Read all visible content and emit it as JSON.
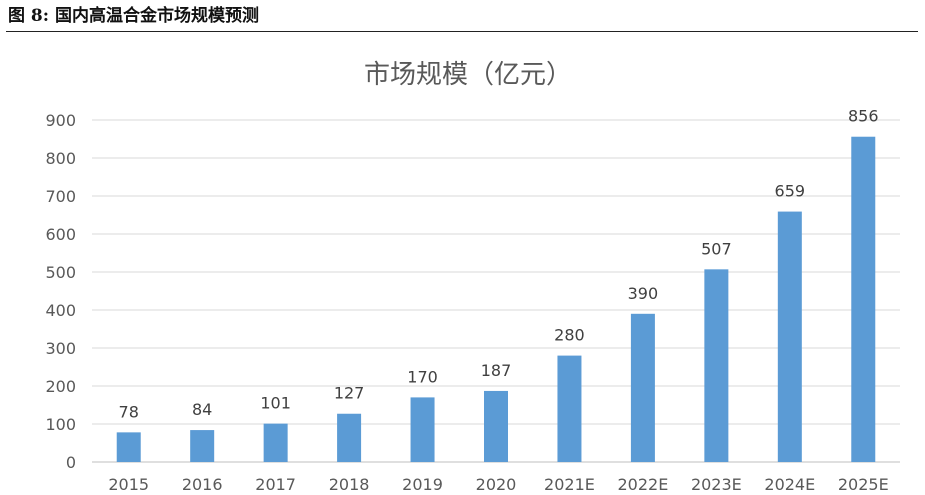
{
  "caption": {
    "figure_label": "图 8:",
    "title": "国内高温合金市场规模预测"
  },
  "chart_data": {
    "type": "bar",
    "title": "市场规模（亿元）",
    "categories": [
      "2015",
      "2016",
      "2017",
      "2018",
      "2019",
      "2020",
      "2021E",
      "2022E",
      "2023E",
      "2024E",
      "2025E"
    ],
    "values": [
      78,
      84,
      101,
      127,
      170,
      187,
      280,
      390,
      507,
      659,
      856
    ],
    "data_labels": [
      "78",
      "84",
      "101",
      "127",
      "170",
      "187",
      "280",
      "390",
      "507",
      "659",
      "856"
    ],
    "xlabel": "",
    "ylabel": "",
    "ylim": [
      0,
      900
    ],
    "yticks": [
      "0",
      "100",
      "200",
      "300",
      "400",
      "500",
      "600",
      "700",
      "800",
      "900"
    ],
    "grid": true,
    "legend": "none",
    "bar_color": "#5B9BD5",
    "grid_color": "#D9D9D9",
    "axis_color": "#BFBFBF"
  }
}
